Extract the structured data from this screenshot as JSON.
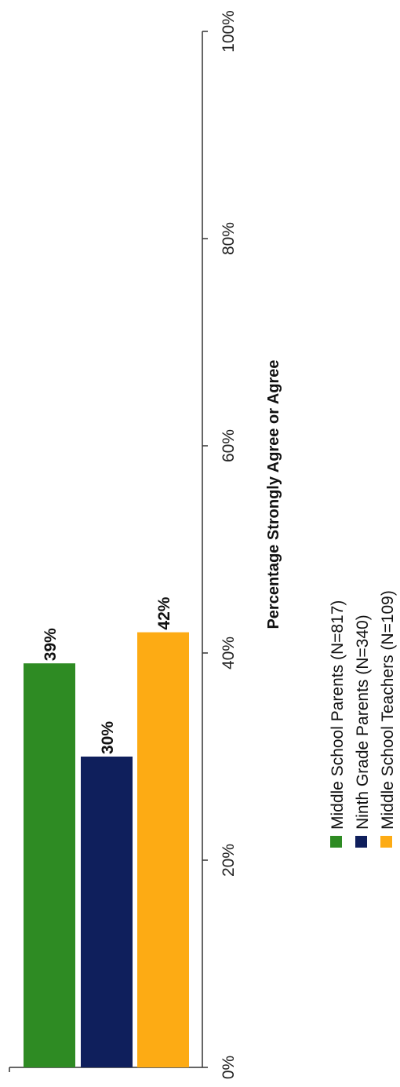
{
  "chart_data": {
    "type": "bar",
    "orientation": "rotated",
    "value_axis_label": "Percentage Strongly Agree or Agree",
    "value_range": [
      0,
      100
    ],
    "ticks": [
      "0%",
      "20%",
      "40%",
      "60%",
      "80%",
      "100%"
    ],
    "series": [
      {
        "name": "Middle School Parents (N=817)",
        "value": 39,
        "label": "39%",
        "color": "#2e8b23"
      },
      {
        "name": "Ninth Grade Parents (N=340)",
        "value": 30,
        "label": "30%",
        "color": "#0f1f5c"
      },
      {
        "name": "Middle School Teachers (N=109)",
        "value": 42,
        "label": "42%",
        "color": "#fdab14"
      }
    ],
    "legend_position": "bottom"
  }
}
